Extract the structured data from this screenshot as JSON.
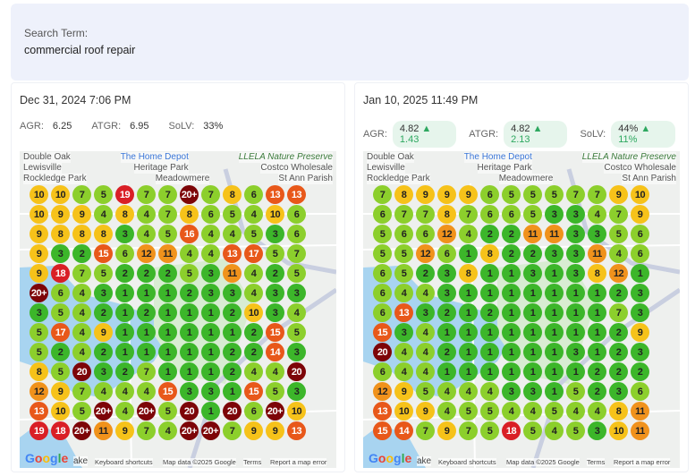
{
  "search": {
    "label": "Search Term:",
    "value": "commercial roof repair"
  },
  "map_labels": {
    "double_oak": "Double Oak",
    "home_depot": "The Home Depot",
    "preserve": "LLELA Nature Preserve",
    "lewisville": "Lewisville",
    "heritage": "Heritage Park",
    "costco": "Costco Wholesale",
    "rockledge": "Rockledge Park",
    "meadowmere": "Meadowmere",
    "st_ann": "St Ann Parish",
    "lake": "ake",
    "google": "Google",
    "shortcuts": "Keyboard shortcuts",
    "mapdata": "Map data ©2025 Google",
    "terms": "Terms",
    "report": "Report a map error"
  },
  "colors": {
    "green": "#3cb62a",
    "lightgreen": "#8ccf2c",
    "yellow": "#f6c21a",
    "orange": "#f0921c",
    "orangered": "#e8581a",
    "red": "#d91f26",
    "darkred": "#7d0508"
  },
  "panels": [
    {
      "date": "Dec 31, 2024 7:06 PM",
      "metrics": [
        {
          "label": "AGR:",
          "value": "6.25"
        },
        {
          "label": "ATGR:",
          "value": "6.95"
        },
        {
          "label": "SoLV:",
          "value": "33%"
        }
      ],
      "grid": [
        [
          "10",
          "10",
          "7",
          "5",
          "19",
          "7",
          "7",
          "20+",
          "7",
          "8",
          "6",
          "13",
          "13"
        ],
        [
          "10",
          "9",
          "9",
          "4",
          "8",
          "4",
          "7",
          "8",
          "6",
          "5",
          "4",
          "10",
          "6"
        ],
        [
          "9",
          "8",
          "8",
          "8",
          "3",
          "4",
          "5",
          "16",
          "4",
          "4",
          "5",
          "3",
          "6"
        ],
        [
          "9",
          "3",
          "2",
          "15",
          "6",
          "12",
          "11",
          "4",
          "4",
          "13",
          "17",
          "5",
          "7"
        ],
        [
          "9",
          "18",
          "7",
          "5",
          "2",
          "2",
          "2",
          "5",
          "3",
          "11",
          "4",
          "2",
          "5"
        ],
        [
          "20+",
          "6",
          "4",
          "3",
          "1",
          "1",
          "1",
          "2",
          "3",
          "3",
          "4",
          "3",
          "3"
        ],
        [
          "3",
          "5",
          "4",
          "2",
          "1",
          "2",
          "1",
          "1",
          "1",
          "2",
          "10",
          "3",
          "4"
        ],
        [
          "5",
          "17",
          "4",
          "9",
          "1",
          "1",
          "1",
          "1",
          "1",
          "1",
          "2",
          "15",
          "5"
        ],
        [
          "5",
          "2",
          "4",
          "2",
          "1",
          "1",
          "1",
          "1",
          "1",
          "2",
          "2",
          "14",
          "3"
        ],
        [
          "8",
          "5",
          "20",
          "3",
          "2",
          "7",
          "1",
          "1",
          "1",
          "2",
          "4",
          "4",
          "20"
        ],
        [
          "12",
          "9",
          "7",
          "4",
          "4",
          "4",
          "15",
          "3",
          "3",
          "1",
          "15",
          "5",
          "3"
        ],
        [
          "13",
          "10",
          "5",
          "20+",
          "4",
          "20+",
          "5",
          "20",
          "1",
          "20",
          "6",
          "20+",
          "10"
        ],
        [
          "19",
          "18",
          "20+",
          "11",
          "9",
          "7",
          "4",
          "20+",
          "20+",
          "7",
          "9",
          "9",
          "13"
        ]
      ]
    },
    {
      "date": "Jan 10, 2025 11:49 PM",
      "metrics": [
        {
          "label": "AGR:",
          "value": "4.82",
          "delta": "1.43"
        },
        {
          "label": "ATGR:",
          "value": "4.82",
          "delta": "2.13"
        },
        {
          "label": "SoLV:",
          "value": "44%",
          "delta": "11%"
        }
      ],
      "grid": [
        [
          "7",
          "8",
          "9",
          "9",
          "9",
          "6",
          "5",
          "5",
          "5",
          "7",
          "7",
          "9",
          "10"
        ],
        [
          "6",
          "7",
          "7",
          "8",
          "7",
          "6",
          "6",
          "5",
          "3",
          "3",
          "4",
          "7",
          "9"
        ],
        [
          "5",
          "6",
          "6",
          "12",
          "4",
          "2",
          "2",
          "11",
          "11",
          "3",
          "3",
          "5",
          "6"
        ],
        [
          "5",
          "5",
          "12",
          "6",
          "1",
          "8",
          "2",
          "2",
          "3",
          "3",
          "11",
          "4",
          "6"
        ],
        [
          "6",
          "5",
          "2",
          "3",
          "8",
          "1",
          "1",
          "3",
          "1",
          "3",
          "8",
          "12",
          "1"
        ],
        [
          "6",
          "4",
          "4",
          "3",
          "1",
          "1",
          "1",
          "1",
          "1",
          "1",
          "1",
          "2",
          "3"
        ],
        [
          "6",
          "13",
          "3",
          "2",
          "1",
          "2",
          "1",
          "1",
          "1",
          "1",
          "1",
          "7",
          "3"
        ],
        [
          "15",
          "3",
          "4",
          "1",
          "1",
          "1",
          "1",
          "1",
          "1",
          "1",
          "1",
          "2",
          "9"
        ],
        [
          "20",
          "4",
          "4",
          "2",
          "1",
          "1",
          "1",
          "1",
          "1",
          "3",
          "1",
          "2",
          "3"
        ],
        [
          "6",
          "4",
          "4",
          "1",
          "1",
          "1",
          "1",
          "1",
          "1",
          "1",
          "2",
          "2",
          "2"
        ],
        [
          "12",
          "9",
          "5",
          "4",
          "4",
          "4",
          "3",
          "3",
          "1",
          "5",
          "2",
          "3",
          "6"
        ],
        [
          "13",
          "10",
          "9",
          "4",
          "5",
          "5",
          "4",
          "4",
          "5",
          "4",
          "4",
          "8",
          "11"
        ],
        [
          "15",
          "14",
          "7",
          "9",
          "7",
          "5",
          "18",
          "5",
          "4",
          "5",
          "3",
          "10",
          "11"
        ]
      ]
    }
  ]
}
